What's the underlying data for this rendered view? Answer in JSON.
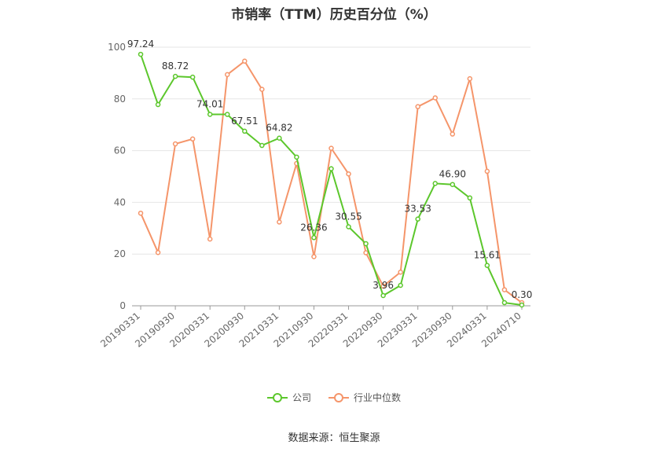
{
  "chart_data": {
    "type": "line",
    "title": "市销率（TTM）历史百分位（%）",
    "ylim": [
      0,
      100
    ],
    "y_ticks": [
      "0",
      "20",
      "40",
      "60",
      "80",
      "100"
    ],
    "x_tick_labels": [
      "20190331",
      "20190930",
      "20200331",
      "20200930",
      "20210331",
      "20210930",
      "20220331",
      "20220930",
      "20230331",
      "20230930",
      "20240331",
      "20240710"
    ],
    "grid": true,
    "legend_position": "bottom",
    "series": [
      {
        "name": "公司",
        "color": "#5cc72c",
        "values": [
          97.24,
          77.8,
          88.72,
          88.4,
          74.01,
          74.0,
          67.51,
          62.0,
          64.82,
          57.5,
          26.36,
          53.0,
          30.55,
          24.0,
          3.96,
          7.9,
          33.53,
          47.3,
          46.9,
          41.7,
          15.61,
          1.2,
          0.3
        ],
        "data_labels": {
          "0": "97.24",
          "2": "88.72",
          "4": "74.01",
          "6": "67.51",
          "8": "64.82",
          "10": "26.36",
          "12": "30.55",
          "14": "3.96",
          "16": "33.53",
          "18": "46.90",
          "20": "15.61",
          "22": "0.30"
        }
      },
      {
        "name": "行业中位数",
        "color": "#f5956a",
        "values": [
          35.8,
          20.6,
          62.6,
          64.5,
          25.8,
          89.4,
          94.6,
          83.7,
          32.4,
          55.0,
          19.0,
          60.9,
          51.0,
          20.5,
          7.6,
          13.0,
          77.0,
          80.4,
          66.4,
          87.8,
          52.0,
          6.2,
          1.2
        ]
      }
    ]
  },
  "source_text": "数据来源：恒生聚源"
}
